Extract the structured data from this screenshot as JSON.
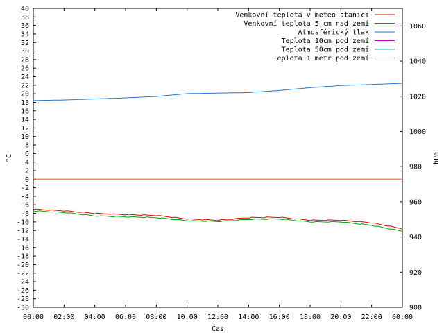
{
  "chart_data": {
    "type": "line",
    "xlabel": "Čas",
    "ylabel_left": "°C",
    "ylabel_right": "hPa",
    "x_ticks": [
      "00:00",
      "02:00",
      "04:00",
      "06:00",
      "08:00",
      "10:00",
      "12:00",
      "14:00",
      "16:00",
      "18:00",
      "20:00",
      "22:00",
      "00:00"
    ],
    "ylim_left": [
      -30,
      40
    ],
    "y_ticks_left": [
      40,
      38,
      36,
      34,
      32,
      30,
      28,
      26,
      24,
      22,
      20,
      18,
      16,
      14,
      12,
      10,
      8,
      6,
      4,
      2,
      0,
      -2,
      -4,
      -6,
      -8,
      -10,
      -12,
      -14,
      -16,
      -18,
      -20,
      -22,
      -24,
      -26,
      -28,
      -30
    ],
    "ylim_right": [
      900,
      1070
    ],
    "y_ticks_right": [
      1060,
      1040,
      1020,
      1000,
      980,
      960,
      940,
      920,
      900
    ],
    "grid": false,
    "legend_position": "top-right",
    "x_hours": [
      0,
      2,
      4,
      6,
      8,
      10,
      12,
      14,
      16,
      18,
      20,
      22,
      24
    ],
    "series": [
      {
        "name": "Venkovní teplota v meteo stanici",
        "axis": "left",
        "color": "#e60000",
        "values": [
          -7.0,
          -7.4,
          -8.0,
          -8.3,
          -8.5,
          -9.3,
          -9.6,
          -9.0,
          -8.9,
          -9.6,
          -9.6,
          -10.2,
          -11.6
        ]
      },
      {
        "name": "Venkovní teplota 5 cm nad zemí",
        "axis": "left",
        "color": "#00a000",
        "values": [
          -7.4,
          -7.8,
          -8.6,
          -8.8,
          -9.0,
          -9.7,
          -9.9,
          -9.4,
          -9.3,
          -10.0,
          -10.0,
          -10.8,
          -12.2
        ]
      },
      {
        "name": "Atmosférický tlak",
        "axis": "right",
        "color": "#1e78d2",
        "values": [
          1017.6,
          1017.9,
          1018.5,
          1019.1,
          1019.9,
          1021.5,
          1021.8,
          1022.1,
          1023.3,
          1024.9,
          1026.1,
          1026.7,
          1027.4
        ]
      },
      {
        "name": "Teplota 10cm pod zemí",
        "axis": "left",
        "color": "#c000c0",
        "values": []
      },
      {
        "name": "Teplota 50cm pod zemí",
        "axis": "left",
        "color": "#00c8c8",
        "values": []
      },
      {
        "name": "Teplota 1 metr pod zemí",
        "axis": "left",
        "color": "#d25a1e",
        "values": [
          0,
          0,
          0,
          0,
          0,
          0,
          0,
          0,
          0,
          0,
          0,
          0,
          0
        ]
      }
    ]
  }
}
